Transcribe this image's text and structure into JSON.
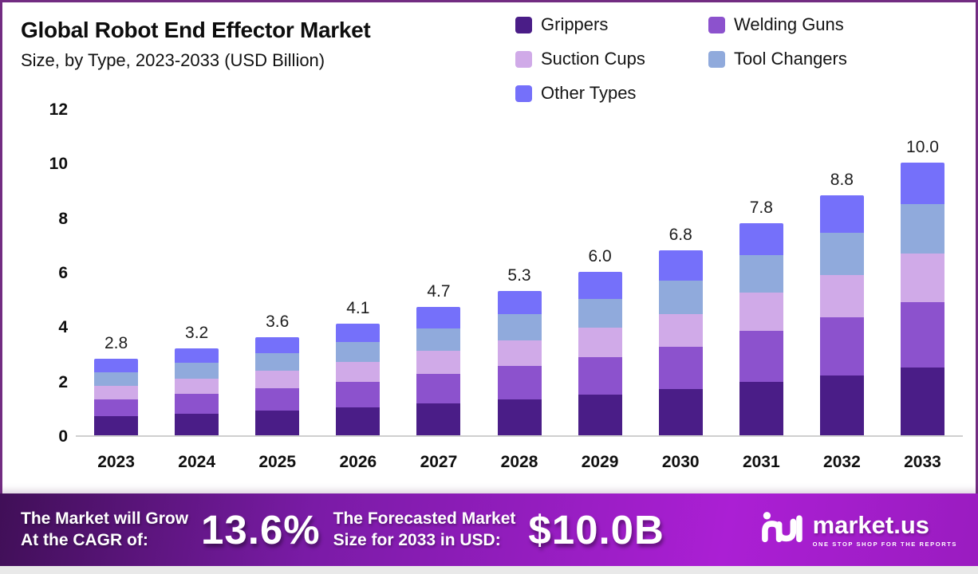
{
  "title": "Global Robot End Effector Market",
  "subtitle": "Size, by Type, 2023-2033 (USD Billion)",
  "chart_data": {
    "type": "bar",
    "stacked": true,
    "title": "Global Robot End Effector Market Size, by Type, 2023-2033 (USD Billion)",
    "xlabel": "",
    "ylabel": "",
    "ylim": [
      0,
      12
    ],
    "yticks": [
      0,
      2,
      4,
      6,
      8,
      10,
      12
    ],
    "grid": false,
    "legend_position": "top-right",
    "categories": [
      "2023",
      "2024",
      "2025",
      "2026",
      "2027",
      "2028",
      "2029",
      "2030",
      "2031",
      "2032",
      "2033"
    ],
    "totals": [
      "2.8",
      "3.2",
      "3.6",
      "4.1",
      "4.7",
      "5.3",
      "6.0",
      "6.8",
      "7.8",
      "8.8",
      "10.0"
    ],
    "series": [
      {
        "name": "Grippers",
        "color": "#4a1d87",
        "values": [
          0.7,
          0.8,
          0.9,
          1.03,
          1.18,
          1.33,
          1.5,
          1.7,
          1.95,
          2.2,
          2.5
        ]
      },
      {
        "name": "Welding Guns",
        "color": "#8c52cd",
        "values": [
          0.62,
          0.72,
          0.82,
          0.94,
          1.08,
          1.22,
          1.38,
          1.56,
          1.89,
          2.12,
          2.4
        ]
      },
      {
        "name": "Suction Cups",
        "color": "#d0aae8",
        "values": [
          0.5,
          0.57,
          0.64,
          0.73,
          0.83,
          0.94,
          1.06,
          1.2,
          1.39,
          1.56,
          1.78
        ]
      },
      {
        "name": "Tool Changers",
        "color": "#90aadc",
        "values": [
          0.5,
          0.57,
          0.64,
          0.73,
          0.84,
          0.95,
          1.08,
          1.22,
          1.39,
          1.57,
          1.8
        ]
      },
      {
        "name": "Other Types",
        "color": "#7570fa",
        "values": [
          0.48,
          0.54,
          0.6,
          0.67,
          0.77,
          0.86,
          0.98,
          1.12,
          1.18,
          1.35,
          1.52
        ]
      }
    ]
  },
  "banner": {
    "cagr_label_line1": "The Market will Grow",
    "cagr_label_line2": "At the CAGR of:",
    "cagr_value": "13.6%",
    "forecast_label_line1": "The Forecasted Market",
    "forecast_label_line2": "Size for 2033 in USD:",
    "forecast_value": "$10.0B",
    "brand_name": "market.us",
    "brand_tagline": "ONE STOP SHOP FOR THE REPORTS"
  },
  "colors": {
    "frame_border": "#722c82",
    "axis_line": "#cfcfcf",
    "banner_gradient": [
      "#400f57",
      "#7a1ba6",
      "#ab1fd4",
      "#9a1cc0"
    ],
    "banner_text": "#ffffff",
    "bottom_strip": "#e9e9e9"
  }
}
